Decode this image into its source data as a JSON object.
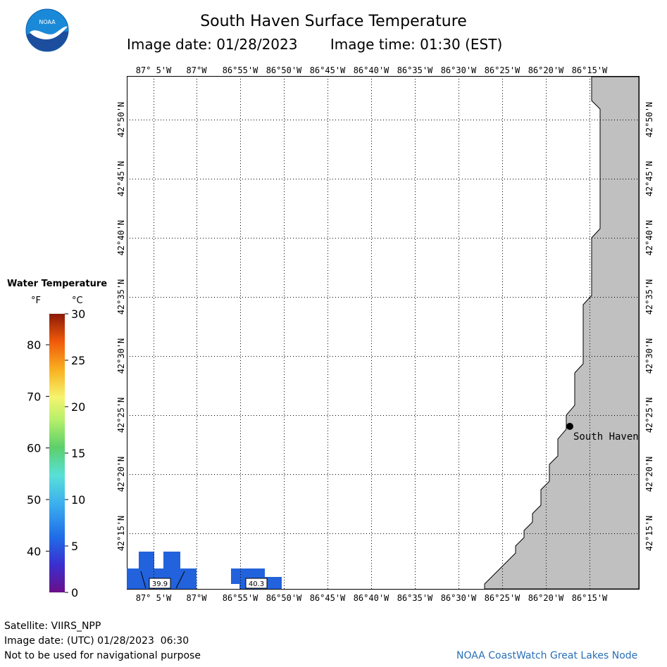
{
  "logo": {
    "text": "NOAA",
    "colors": {
      "sky": "#1a8ad8",
      "ocean": "#1d4e9e",
      "bird": "#ffffff"
    }
  },
  "title": "South Haven Surface Temperature",
  "subtitle": {
    "date": "Image date: 01/28/2023",
    "time": "Image time: 01:30 (EST)"
  },
  "map": {
    "lon_ticks": [
      "87° 5'W",
      "87°W",
      "86°55'W",
      "86°50'W",
      "86°45'W",
      "86°40'W",
      "86°35'W",
      "86°30'W",
      "86°25'W",
      "86°20'W",
      "86°15'W"
    ],
    "lat_ticks": [
      "42°50'N",
      "42°45'N",
      "42°40'N",
      "42°35'N",
      "42°30'N",
      "42°25'N",
      "42°20'N",
      "42°15'N"
    ],
    "city": "South Haven",
    "temp_labels": [
      "39.9",
      "40.3"
    ],
    "colors": {
      "land": "#c0c0c0",
      "water": "#ffffff",
      "warm_pixel": "#2262dc",
      "grid": "#000000"
    }
  },
  "legend": {
    "title": "Water Temperature",
    "unit_f": "°F",
    "unit_c": "°C",
    "f_ticks": [
      "80",
      "70",
      "60",
      "50",
      "40"
    ],
    "c_ticks": [
      "30",
      "25",
      "20",
      "15",
      "10",
      "5",
      "0"
    ]
  },
  "footer": {
    "satellite": "Satellite: VIIRS_NPP",
    "utc_date": "Image date: (UTC) 01/28/2023  06:30",
    "warning": "Not to be used for navigational purpose",
    "credit": "NOAA CoastWatch Great Lakes Node"
  }
}
